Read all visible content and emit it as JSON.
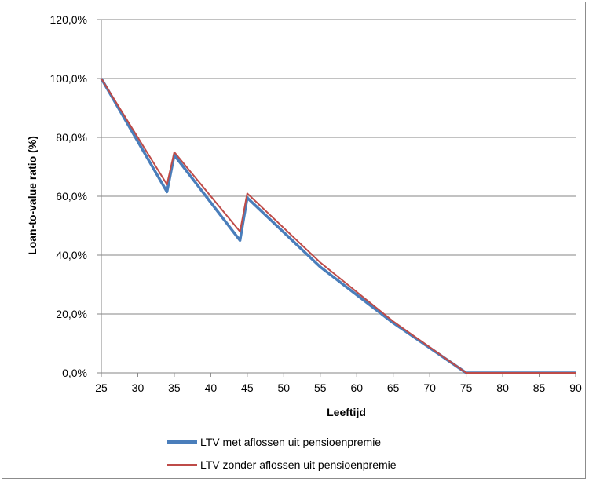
{
  "chart_data": {
    "type": "line",
    "title": "",
    "xlabel": "Leeftijd",
    "ylabel": "Loan-to-value ratio (%)",
    "xlim": [
      25,
      90
    ],
    "ylim": [
      0,
      120
    ],
    "grid": true,
    "legend_position": "bottom",
    "x_ticks": [
      "25",
      "30",
      "35",
      "40",
      "45",
      "50",
      "55",
      "60",
      "65",
      "70",
      "75",
      "80",
      "85",
      "90"
    ],
    "y_ticks": [
      "0,0%",
      "20,0%",
      "40,0%",
      "60,0%",
      "80,0%",
      "100,0%",
      "120,0%"
    ],
    "series": [
      {
        "name": "LTV met aflossen uit pensioenpremie",
        "color": "#4a7ebb",
        "points": [
          [
            25,
            100
          ],
          [
            34,
            61.5
          ],
          [
            35,
            74
          ],
          [
            44,
            45
          ],
          [
            45,
            59.5
          ],
          [
            55,
            36
          ],
          [
            65,
            17
          ],
          [
            75,
            0
          ],
          [
            90,
            0
          ]
        ]
      },
      {
        "name": "LTV zonder aflossen uit pensioenpremie",
        "color": "#be4b48",
        "points": [
          [
            25,
            100
          ],
          [
            34,
            64
          ],
          [
            35,
            75
          ],
          [
            44,
            48
          ],
          [
            45,
            61
          ],
          [
            55,
            37.5
          ],
          [
            65,
            17.5
          ],
          [
            75,
            0
          ],
          [
            90,
            0
          ]
        ]
      }
    ]
  }
}
